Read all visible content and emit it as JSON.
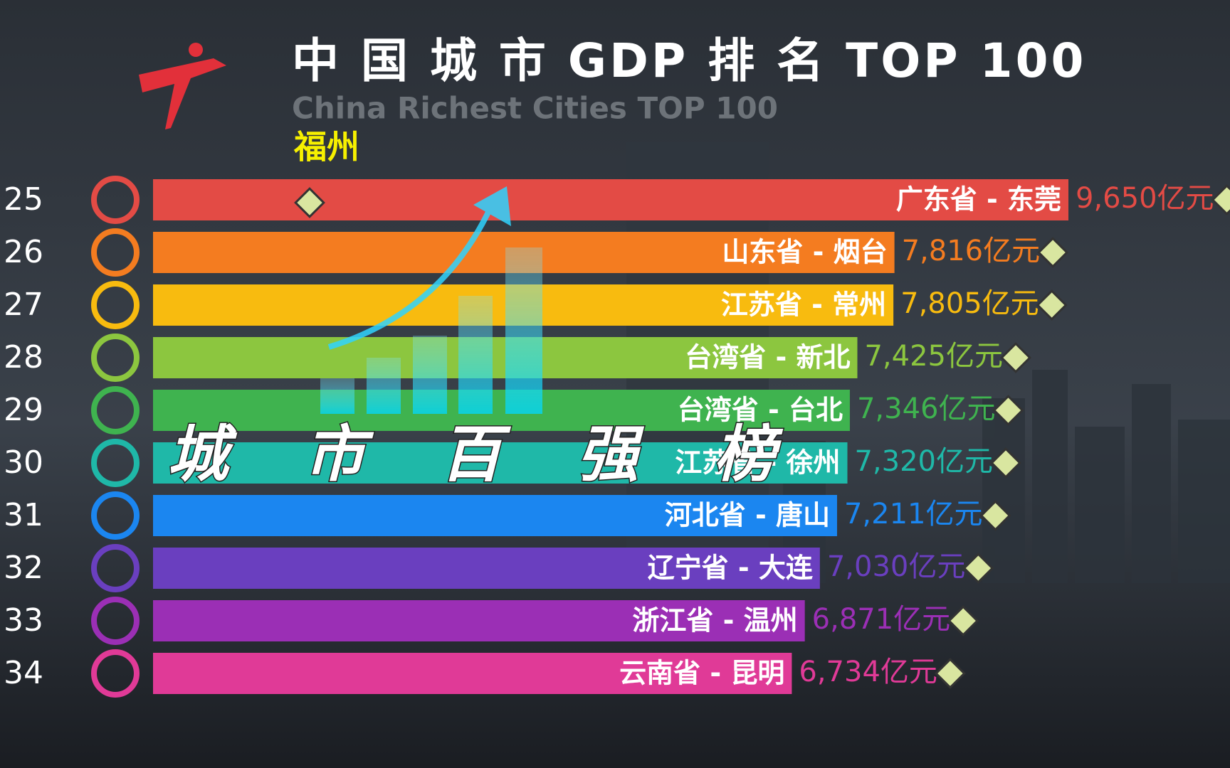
{
  "chart_data": {
    "type": "bar",
    "orientation": "horizontal",
    "title": "中 国 城 市 GDP 排 名 TOP 100",
    "subtitle": "China Richest Cities TOP 100",
    "annotation": "福州",
    "overlay_text": "城 市 百 强 榜",
    "ranks": [
      25,
      26,
      27,
      28,
      29,
      30,
      31,
      32,
      33,
      34
    ],
    "categories": [
      "广东省 - 东莞",
      "山东省 - 烟台",
      "江苏省 - 常州",
      "台湾省 - 新北",
      "台湾省 - 台北",
      "江苏省 - 徐州",
      "河北省 - 唐山",
      "辽宁省 - 大连",
      "浙江省 - 温州",
      "云南省 - 昆明"
    ],
    "values": [
      9650,
      7816,
      7805,
      7425,
      7346,
      7320,
      7211,
      7030,
      6871,
      6734
    ],
    "value_labels": [
      "9,650亿元",
      "7,816亿元",
      "7,805亿元",
      "7,425亿元",
      "7,346亿元",
      "7,320亿元",
      "7,211亿元",
      "7,030亿元",
      "6,871亿元",
      "6,734亿元"
    ],
    "colors": [
      "#e34b45",
      "#f47c20",
      "#f8bb0f",
      "#8cc63f",
      "#3fb34f",
      "#1fb8a8",
      "#1b86f0",
      "#6a3fbf",
      "#9b2fb5",
      "#e03a97"
    ]
  }
}
